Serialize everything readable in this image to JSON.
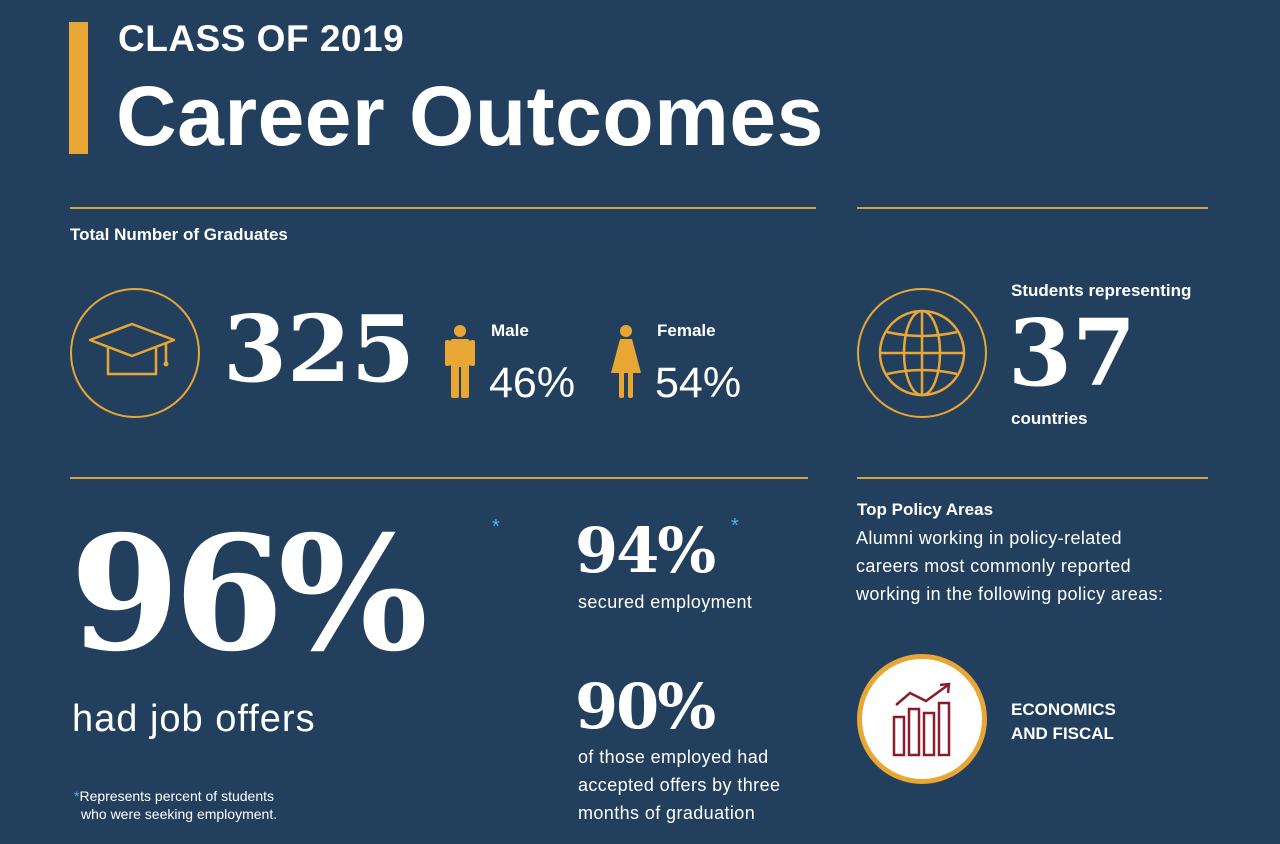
{
  "header": {
    "eyebrow": "CLASS OF 2019",
    "title": "Career Outcomes"
  },
  "graduates": {
    "label": "Total Number of Graduates",
    "icon": "graduation-cap-icon",
    "total": "325",
    "male_label": "Male",
    "male_pct": "46%",
    "female_label": "Female",
    "female_pct": "54%"
  },
  "countries": {
    "icon": "globe-icon",
    "label_top": "Students representing",
    "number": "37",
    "label_bottom": "countries"
  },
  "job_offers": {
    "value": "96%",
    "asterisk": "*",
    "caption": "had job offers",
    "footnote_star": "*",
    "footnote_line1": "Represents percent of students",
    "footnote_line2": "who were seeking employment."
  },
  "employment": {
    "value": "94%",
    "asterisk": "*",
    "caption": "secured employment"
  },
  "accepted": {
    "value": "90%",
    "caption_line1": "of those employed had",
    "caption_line2": "accepted offers by three",
    "caption_line3": "months of graduation"
  },
  "policy": {
    "heading": "Top Policy Areas",
    "line1": "Alumni working in policy-related",
    "line2": "careers most commonly reported",
    "line3": "working in the following policy areas:",
    "area_icon": "bar-chart-growth-icon",
    "area_line1": "ECONOMICS",
    "area_line2": "AND FISCAL"
  },
  "colors": {
    "background": "#233f5e",
    "accent": "#e8a735",
    "asterisk": "#4fb3e8",
    "policy_icon": "#8a1c2b"
  }
}
